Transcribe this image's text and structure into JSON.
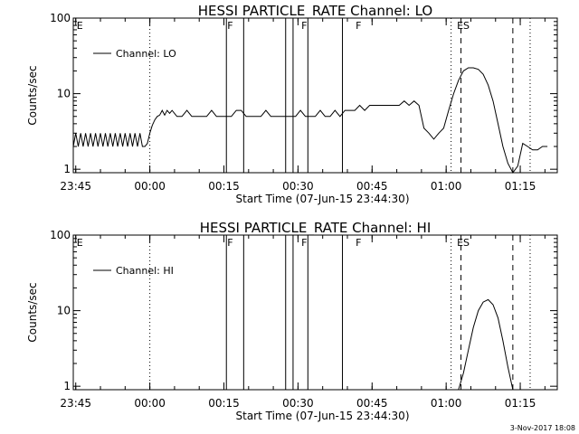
{
  "footer": {
    "date": "3-Nov-2017 18:08"
  },
  "chart_data": [
    {
      "type": "line",
      "title": "HESSI PARTICLE_RATE Channel: LO",
      "xlabel": "Start Time (07-Jun-15 23:44:30)",
      "ylabel": "Counts/sec",
      "y_scale": "log",
      "ylim": [
        0.9,
        100
      ],
      "xlim_minutes_from_start": [
        0,
        98
      ],
      "x_tick_labels": [
        "23:45",
        "00:00",
        "00:15",
        "00:30",
        "00:45",
        "01:00",
        "01:15"
      ],
      "x_tick_minutes": [
        0.5,
        15.5,
        30.5,
        45.5,
        60.5,
        75.5,
        90.5
      ],
      "y_tick_labels": [
        "1",
        "10",
        "100"
      ],
      "y_tick_values": [
        1,
        10,
        100
      ],
      "legend": "top-left",
      "series": [
        {
          "name": "Channel: LO",
          "x": [
            0,
            0.5,
            1,
            1.5,
            2,
            2.5,
            3,
            3.5,
            4,
            4.5,
            5,
            5.5,
            6,
            6.5,
            7,
            7.5,
            8,
            8.5,
            9,
            9.5,
            10,
            10.5,
            11,
            11.5,
            12,
            12.5,
            13,
            13.5,
            14,
            14.5,
            15,
            15.5,
            16,
            16.5,
            17,
            17.5,
            18,
            18.5,
            19,
            19.5,
            20,
            21,
            22,
            23,
            24,
            25,
            26,
            27,
            28,
            29,
            30,
            31,
            32,
            33,
            34,
            35,
            36,
            37,
            38,
            39,
            40,
            41,
            42,
            43,
            44,
            45,
            46,
            47,
            48,
            49,
            50,
            51,
            52,
            53,
            54,
            55,
            56,
            57,
            58,
            59,
            60,
            61,
            62,
            63,
            64,
            65,
            66,
            67,
            68,
            69,
            70,
            71,
            72,
            73,
            74,
            75,
            76,
            77,
            78,
            79,
            80,
            81,
            82,
            83,
            84,
            85,
            86,
            87,
            88,
            89,
            90,
            91,
            92,
            93,
            94,
            95,
            96
          ],
          "y": [
            2,
            3,
            2,
            3,
            2,
            3,
            2,
            3,
            2,
            3,
            2,
            3,
            2,
            3,
            2,
            3,
            2,
            3,
            2,
            3,
            2,
            3,
            2,
            3,
            2,
            3,
            2,
            3,
            2,
            2,
            2.2,
            3,
            3.8,
            4.5,
            5,
            5.2,
            6,
            5.2,
            6,
            5.5,
            6,
            5,
            5,
            6,
            5,
            5,
            5,
            5,
            6,
            5,
            5,
            5,
            5,
            6,
            6,
            5,
            5,
            5,
            5,
            6,
            5,
            5,
            5,
            5,
            5,
            5,
            6,
            5,
            5,
            5,
            6,
            5,
            5,
            6,
            5,
            6,
            6,
            6,
            7,
            6,
            7,
            7,
            7,
            7,
            7,
            7,
            7,
            8,
            7,
            8,
            7,
            3.5,
            3,
            2.5,
            3,
            3.5,
            6,
            10,
            15,
            20,
            22,
            22,
            21,
            18,
            13,
            8,
            4,
            2,
            1.2,
            0.9,
            1.1,
            2.2,
            2,
            1.8,
            1.8,
            2,
            2
          ],
          "flags": [
            {
              "label": "E",
              "minute": 0.5
            },
            {
              "label": "F",
              "minute": 31
            },
            {
              "label": "F",
              "minute": 46
            },
            {
              "label": "F",
              "minute": 57
            },
            {
              "label": "ES",
              "minute": 77.5
            }
          ]
        }
      ]
    },
    {
      "type": "line",
      "title": "HESSI PARTICLE_RATE Channel: HI",
      "xlabel": "Start Time (07-Jun-15 23:44:30)",
      "ylabel": "Counts/sec",
      "y_scale": "log",
      "ylim": [
        0.9,
        100
      ],
      "xlim_minutes_from_start": [
        0,
        98
      ],
      "x_tick_labels": [
        "23:45",
        "00:00",
        "00:15",
        "00:30",
        "00:45",
        "01:00",
        "01:15"
      ],
      "x_tick_minutes": [
        0.5,
        15.5,
        30.5,
        45.5,
        60.5,
        75.5,
        90.5
      ],
      "y_tick_labels": [
        "1",
        "10",
        "100"
      ],
      "y_tick_values": [
        1,
        10,
        100
      ],
      "legend": "top-left",
      "series": [
        {
          "name": "Channel: HI",
          "x": [
            78,
            79,
            80,
            81,
            82,
            83,
            84,
            85,
            86,
            87,
            88,
            89
          ],
          "y": [
            0.9,
            1.5,
            3,
            6,
            10,
            13,
            14,
            12,
            8,
            4,
            1.8,
            0.9
          ],
          "flags": [
            {
              "label": "E",
              "minute": 0.5
            },
            {
              "label": "F",
              "minute": 31
            },
            {
              "label": "F",
              "minute": 46
            },
            {
              "label": "F",
              "minute": 57
            },
            {
              "label": "ES",
              "minute": 77.5
            }
          ]
        }
      ]
    }
  ]
}
